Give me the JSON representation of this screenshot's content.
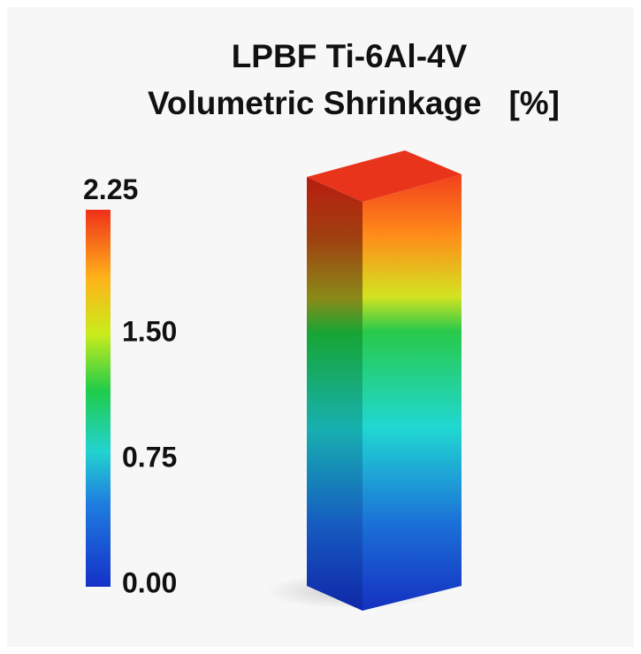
{
  "title": {
    "line1": "LPBF Ti-6Al-4V",
    "line2": "Volumetric Shrinkage   [%]"
  },
  "colorbar": {
    "range": [
      0,
      2.25
    ],
    "ticks": [
      2.25,
      {
        "value": 1.5,
        "label": "1.50"
      },
      0.75,
      {
        "value": 0,
        "label": "0.00"
      }
    ]
  }
}
